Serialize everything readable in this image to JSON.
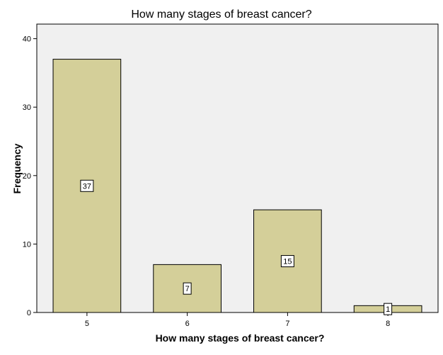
{
  "chart_data": {
    "type": "bar",
    "title": "How many stages of breast cancer?",
    "xlabel": "How many stages of breast cancer?",
    "ylabel": "Frequency",
    "categories": [
      "5",
      "6",
      "7",
      "8"
    ],
    "values": [
      37,
      7,
      15,
      1
    ],
    "data_labels": [
      "37",
      "7",
      "15",
      "1"
    ],
    "ylim": [
      0,
      42
    ],
    "yticks": [
      0,
      10,
      20,
      30,
      40
    ],
    "grid": false,
    "colors": {
      "bar_fill": "#d4cf99",
      "bar_stroke": "#000000",
      "plot_background": "#f0f0f0"
    }
  }
}
